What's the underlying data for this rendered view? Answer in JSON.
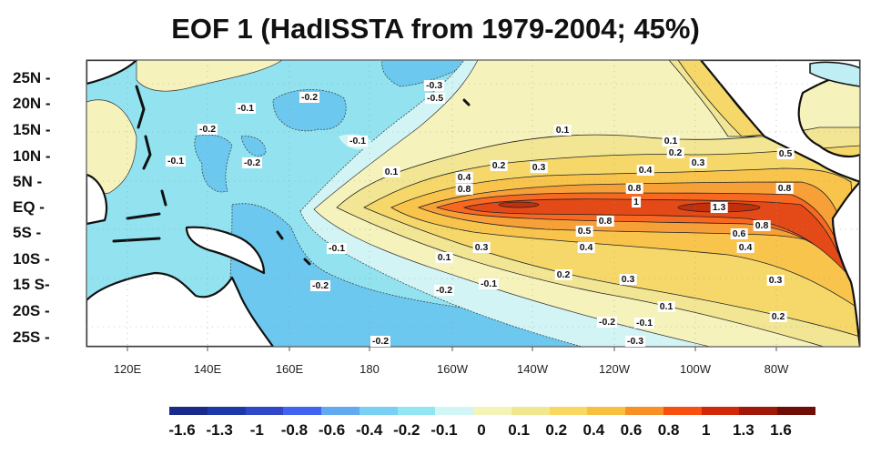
{
  "title": "EOF 1 (HadISSTA from 1979-2004;  45%)",
  "y_axis": {
    "labels": [
      "25N -",
      "20N -",
      "15N -",
      "10N -",
      "5N   -",
      "EQ    -",
      "5S   -",
      "10S -",
      "15 S-",
      "20S -",
      "25S -"
    ]
  },
  "x_axis": {
    "labels": [
      "120E",
      "140E",
      "160E",
      "180",
      "160W",
      "140W",
      "120W",
      "100W",
      "80W"
    ]
  },
  "colorbar": {
    "labels": [
      "-1.6",
      "-1.3",
      "-1",
      "-0.8",
      "-0.6",
      "-0.4",
      "-0.2",
      "-0.1",
      "0",
      "0.1",
      "0.2",
      "0.4",
      "0.6",
      "0.8",
      "1",
      "1.3",
      "1.6"
    ],
    "colors": [
      "#1a2a8a",
      "#1f38a8",
      "#3048c8",
      "#4262f0",
      "#62aaf0",
      "#78d0f2",
      "#92e6f2",
      "#d2f6f6",
      "#f4f4b8",
      "#f0e88e",
      "#f8d860",
      "#f8c040",
      "#f89028",
      "#f85010",
      "#d02808",
      "#a01808",
      "#6e0e06"
    ]
  },
  "contour_labels": [
    "-0.1",
    "-0.2",
    "-0.3",
    "-0.5",
    "-0.2",
    "-0.1",
    "-0.1",
    "-0.2",
    "0.1",
    "-0.1",
    "0.1",
    "-0.2",
    "-0.2",
    "-0.2",
    "0.1",
    "0.1",
    "0.2",
    "0.3",
    "0.5",
    "0.2",
    "0.3",
    "0.4",
    "0.4",
    "0.8",
    "0.8",
    "0.8",
    "1",
    "1.3",
    "0.8",
    "0.8",
    "0.5",
    "0.6",
    "0.4",
    "0.4",
    "0.3",
    "0.2",
    "0.3",
    "0.3",
    "-0.1",
    "0.1",
    "0.2",
    "-0.2",
    "-0.1",
    "-0.3"
  ]
}
